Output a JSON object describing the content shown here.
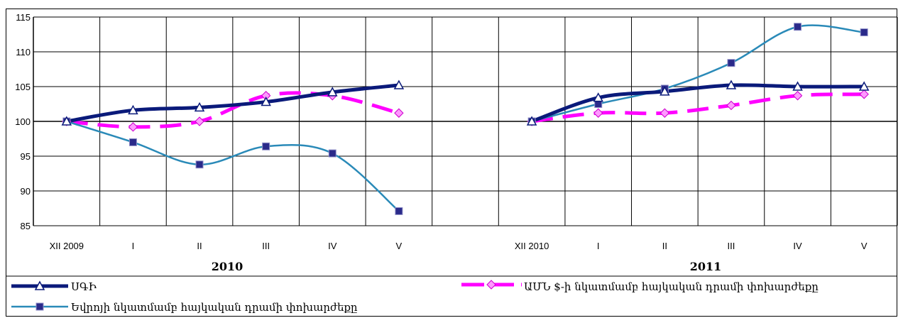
{
  "chart_data": {
    "type": "line",
    "ylim": [
      85,
      115
    ],
    "y_ticks": [
      "85",
      "90",
      "95",
      "100",
      "105",
      "110",
      "115"
    ],
    "categories": [
      "XII 2009",
      "I",
      "II",
      "III",
      "IV",
      "V",
      "",
      "XII 2010",
      "I",
      "II",
      "III",
      "IV",
      "V"
    ],
    "year_labels": [
      "2010",
      "2011"
    ],
    "grid": true,
    "legend_position": "bottom",
    "series": [
      {
        "name": "ՍԳԻ",
        "color": "#0a1a7a",
        "style": "solid-thick",
        "marker": "triangle",
        "values": [
          100,
          101.6,
          102.0,
          102.8,
          104.2,
          105.2,
          null,
          100,
          103.4,
          104.3,
          105.2,
          105.0,
          105.0
        ]
      },
      {
        "name": "ԱՄՆ $-ի նկատմամբ հայկական դրամի փոխարժեքը",
        "color": "#ff00ff",
        "style": "dashed",
        "marker": "diamond",
        "values": [
          100,
          99.2,
          100.0,
          103.7,
          103.7,
          101.2,
          null,
          100,
          101.2,
          101.2,
          102.3,
          103.7,
          103.9
        ]
      },
      {
        "name": "Եվրոյի նկատմամբ հայկական դրամի փոխարժեքը",
        "color": "#2a8ab8",
        "style": "solid",
        "marker": "square",
        "values": [
          100,
          97.0,
          93.8,
          96.4,
          95.4,
          87.1,
          null,
          100,
          102.5,
          104.7,
          108.4,
          113.6,
          112.8
        ]
      }
    ]
  }
}
